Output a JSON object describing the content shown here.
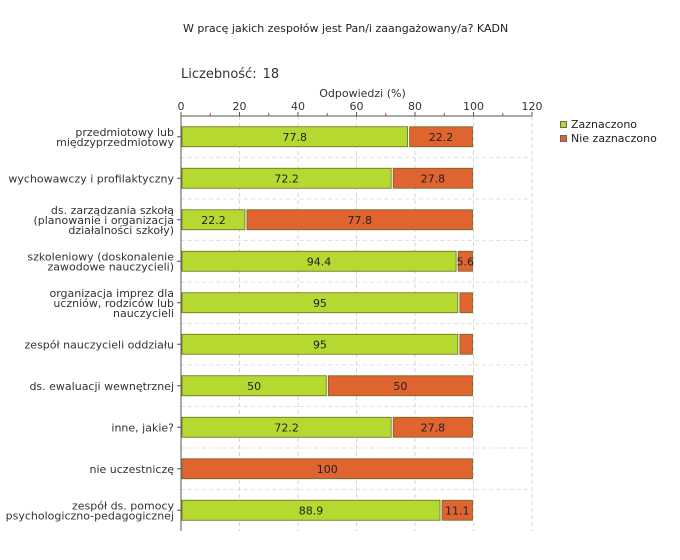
{
  "title": "W pracę jakich zespołów jest Pan/i zaangażowany/a? KADN",
  "count_label": "Liczebność:",
  "count_value": "18",
  "chart_data": {
    "type": "bar",
    "orientation": "horizontal",
    "stacked": true,
    "title": "W pracę jakich zespołów jest Pan/i zaangażowany/a? KADN",
    "xlabel": "Odpowiedzi (%)",
    "ylabel": "",
    "xlim": [
      0,
      120
    ],
    "xticks": [
      0,
      20,
      40,
      60,
      80,
      100,
      120
    ],
    "grid": true,
    "legend_position": "right",
    "categories": [
      [
        "przedmiotowy lub",
        "międzyprzedmiotowy"
      ],
      [
        "wychowawczy i profilaktyczny"
      ],
      [
        "ds. zarządzania szkołą",
        "(planowanie i organizacja",
        "działalności szkoły)"
      ],
      [
        "szkoleniowy (doskonalenie",
        "zawodowe nauczycieli)"
      ],
      [
        "organizacja imprez dla",
        "uczniów, rodziców lub",
        "nauczycieli"
      ],
      [
        "zespół nauczycieli oddziału"
      ],
      [
        "ds. ewaluacji wewnętrznej"
      ],
      [
        "inne, jakie?"
      ],
      [
        "nie uczestniczę"
      ],
      [
        "zespół ds. pomocy",
        "psychologiczno-pedagogicznej"
      ]
    ],
    "series": [
      {
        "name": "Zaznaczono",
        "color": "#b5d930",
        "values": [
          77.8,
          72.2,
          22.2,
          94.4,
          95,
          95,
          50,
          72.2,
          0,
          88.9
        ],
        "labels": [
          "77.8",
          "72.2",
          "22.2",
          "94.4",
          "95",
          "95",
          "50",
          "72.2",
          "",
          "88.9"
        ]
      },
      {
        "name": "Nie zaznaczono",
        "color": "#e06430",
        "values": [
          22.2,
          27.8,
          77.8,
          5.6,
          5,
          5,
          50,
          27.8,
          100,
          11.1
        ],
        "labels": [
          "22.2",
          "27.8",
          "77.8",
          "5.6",
          "",
          "",
          "50",
          "27.8",
          "100",
          "11.1"
        ]
      }
    ]
  }
}
